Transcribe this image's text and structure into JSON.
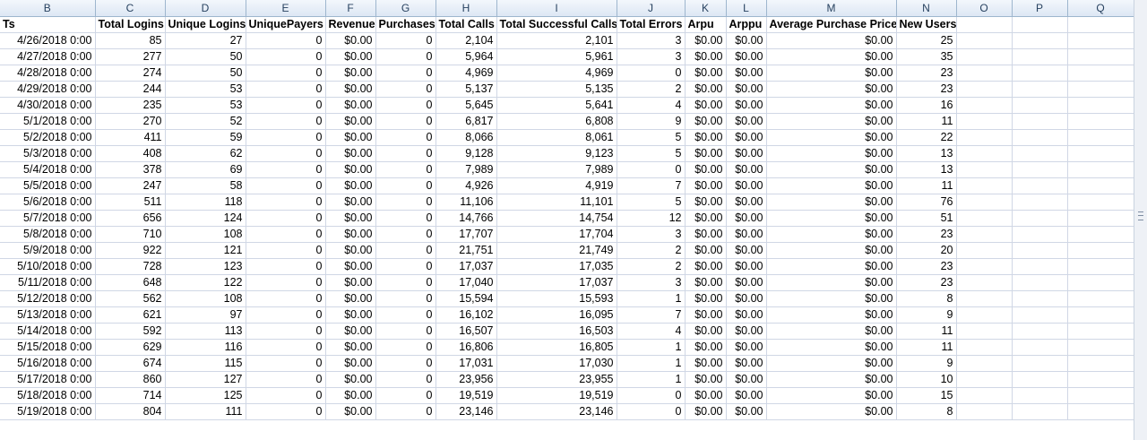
{
  "columns": [
    "B",
    "C",
    "D",
    "E",
    "F",
    "G",
    "H",
    "I",
    "J",
    "K",
    "L",
    "M",
    "N",
    "O",
    "P",
    "Q"
  ],
  "headers": [
    "Ts",
    "Total Logins",
    "Unique Logins",
    "UniquePayers",
    "Revenue",
    "Purchases",
    "Total Calls",
    "Total Successful Calls",
    "Total Errors",
    "Arpu",
    "Arppu",
    "Average Purchase Price",
    "New Users"
  ],
  "rows": [
    [
      "4/26/2018 0:00",
      "85",
      "27",
      "0",
      "$0.00",
      "0",
      "2,104",
      "2,101",
      "3",
      "$0.00",
      "$0.00",
      "$0.00",
      "25"
    ],
    [
      "4/27/2018 0:00",
      "277",
      "50",
      "0",
      "$0.00",
      "0",
      "5,964",
      "5,961",
      "3",
      "$0.00",
      "$0.00",
      "$0.00",
      "35"
    ],
    [
      "4/28/2018 0:00",
      "274",
      "50",
      "0",
      "$0.00",
      "0",
      "4,969",
      "4,969",
      "0",
      "$0.00",
      "$0.00",
      "$0.00",
      "23"
    ],
    [
      "4/29/2018 0:00",
      "244",
      "53",
      "0",
      "$0.00",
      "0",
      "5,137",
      "5,135",
      "2",
      "$0.00",
      "$0.00",
      "$0.00",
      "23"
    ],
    [
      "4/30/2018 0:00",
      "235",
      "53",
      "0",
      "$0.00",
      "0",
      "5,645",
      "5,641",
      "4",
      "$0.00",
      "$0.00",
      "$0.00",
      "16"
    ],
    [
      "5/1/2018 0:00",
      "270",
      "52",
      "0",
      "$0.00",
      "0",
      "6,817",
      "6,808",
      "9",
      "$0.00",
      "$0.00",
      "$0.00",
      "11"
    ],
    [
      "5/2/2018 0:00",
      "411",
      "59",
      "0",
      "$0.00",
      "0",
      "8,066",
      "8,061",
      "5",
      "$0.00",
      "$0.00",
      "$0.00",
      "22"
    ],
    [
      "5/3/2018 0:00",
      "408",
      "62",
      "0",
      "$0.00",
      "0",
      "9,128",
      "9,123",
      "5",
      "$0.00",
      "$0.00",
      "$0.00",
      "13"
    ],
    [
      "5/4/2018 0:00",
      "378",
      "69",
      "0",
      "$0.00",
      "0",
      "7,989",
      "7,989",
      "0",
      "$0.00",
      "$0.00",
      "$0.00",
      "13"
    ],
    [
      "5/5/2018 0:00",
      "247",
      "58",
      "0",
      "$0.00",
      "0",
      "4,926",
      "4,919",
      "7",
      "$0.00",
      "$0.00",
      "$0.00",
      "11"
    ],
    [
      "5/6/2018 0:00",
      "511",
      "118",
      "0",
      "$0.00",
      "0",
      "11,106",
      "11,101",
      "5",
      "$0.00",
      "$0.00",
      "$0.00",
      "76"
    ],
    [
      "5/7/2018 0:00",
      "656",
      "124",
      "0",
      "$0.00",
      "0",
      "14,766",
      "14,754",
      "12",
      "$0.00",
      "$0.00",
      "$0.00",
      "51"
    ],
    [
      "5/8/2018 0:00",
      "710",
      "108",
      "0",
      "$0.00",
      "0",
      "17,707",
      "17,704",
      "3",
      "$0.00",
      "$0.00",
      "$0.00",
      "23"
    ],
    [
      "5/9/2018 0:00",
      "922",
      "121",
      "0",
      "$0.00",
      "0",
      "21,751",
      "21,749",
      "2",
      "$0.00",
      "$0.00",
      "$0.00",
      "20"
    ],
    [
      "5/10/2018 0:00",
      "728",
      "123",
      "0",
      "$0.00",
      "0",
      "17,037",
      "17,035",
      "2",
      "$0.00",
      "$0.00",
      "$0.00",
      "23"
    ],
    [
      "5/11/2018 0:00",
      "648",
      "122",
      "0",
      "$0.00",
      "0",
      "17,040",
      "17,037",
      "3",
      "$0.00",
      "$0.00",
      "$0.00",
      "23"
    ],
    [
      "5/12/2018 0:00",
      "562",
      "108",
      "0",
      "$0.00",
      "0",
      "15,594",
      "15,593",
      "1",
      "$0.00",
      "$0.00",
      "$0.00",
      "8"
    ],
    [
      "5/13/2018 0:00",
      "621",
      "97",
      "0",
      "$0.00",
      "0",
      "16,102",
      "16,095",
      "7",
      "$0.00",
      "$0.00",
      "$0.00",
      "9"
    ],
    [
      "5/14/2018 0:00",
      "592",
      "113",
      "0",
      "$0.00",
      "0",
      "16,507",
      "16,503",
      "4",
      "$0.00",
      "$0.00",
      "$0.00",
      "11"
    ],
    [
      "5/15/2018 0:00",
      "629",
      "116",
      "0",
      "$0.00",
      "0",
      "16,806",
      "16,805",
      "1",
      "$0.00",
      "$0.00",
      "$0.00",
      "11"
    ],
    [
      "5/16/2018 0:00",
      "674",
      "115",
      "0",
      "$0.00",
      "0",
      "17,031",
      "17,030",
      "1",
      "$0.00",
      "$0.00",
      "$0.00",
      "9"
    ],
    [
      "5/17/2018 0:00",
      "860",
      "127",
      "0",
      "$0.00",
      "0",
      "23,956",
      "23,955",
      "1",
      "$0.00",
      "$0.00",
      "$0.00",
      "10"
    ],
    [
      "5/18/2018 0:00",
      "714",
      "125",
      "0",
      "$0.00",
      "0",
      "19,519",
      "19,519",
      "0",
      "$0.00",
      "$0.00",
      "$0.00",
      "15"
    ],
    [
      "5/19/2018 0:00",
      "804",
      "111",
      "0",
      "$0.00",
      "0",
      "23,146",
      "23,146",
      "0",
      "$0.00",
      "$0.00",
      "$0.00",
      "8"
    ]
  ]
}
